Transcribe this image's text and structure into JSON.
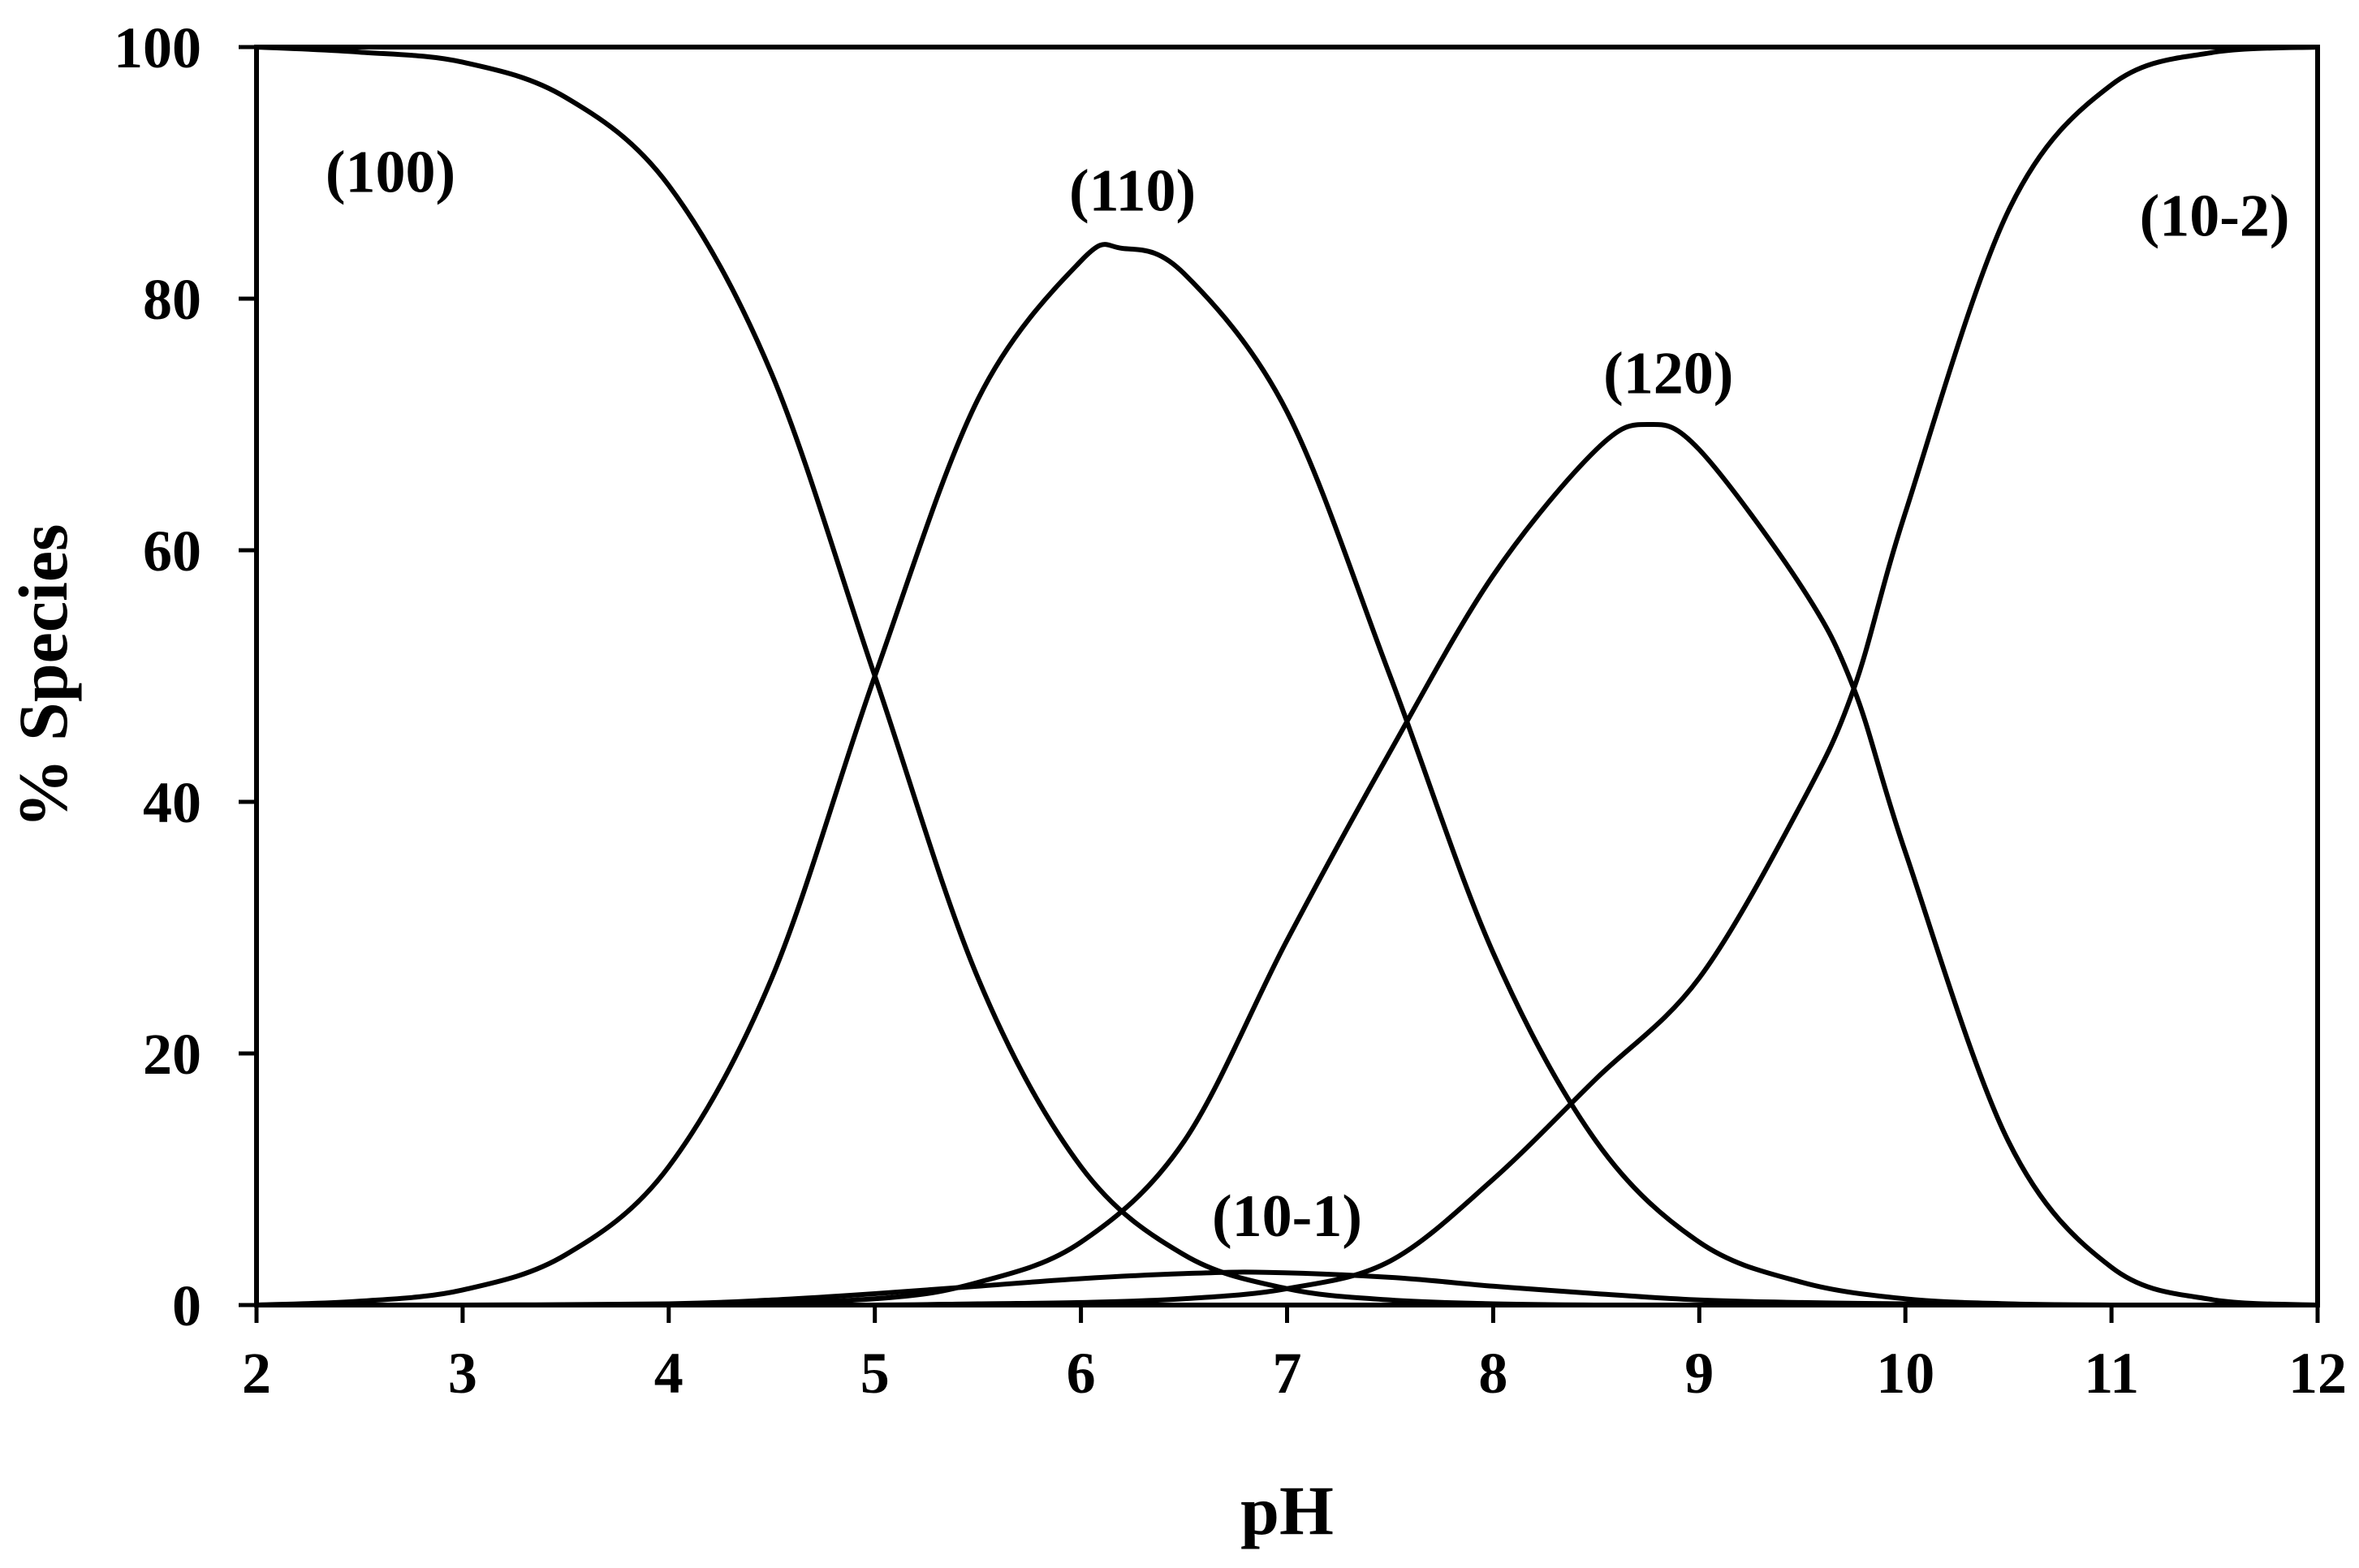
{
  "chart_data": {
    "type": "line",
    "title": "",
    "xlabel": "pH",
    "ylabel": "% Species",
    "xlim": [
      2,
      12
    ],
    "ylim": [
      0,
      100
    ],
    "xticks": [
      "2",
      "3",
      "4",
      "5",
      "6",
      "7",
      "8",
      "9",
      "10",
      "11",
      "12"
    ],
    "yticks": [
      "0",
      "20",
      "40",
      "60",
      "80",
      "100"
    ],
    "grid": false,
    "legend": "none",
    "line_color": "#000000",
    "series": [
      {
        "name": "(100)",
        "x": [
          2,
          2.5,
          3,
          3.5,
          4,
          4.5,
          5,
          5.5,
          6,
          6.5,
          7,
          7.5,
          8,
          8.5,
          9,
          9.5,
          10,
          11,
          12
        ],
        "y": [
          100,
          99.6,
          98.8,
          96,
          89,
          74,
          50,
          26,
          11,
          4,
          1.3,
          0.4,
          0.1,
          0,
          0,
          0,
          0,
          0,
          0
        ]
      },
      {
        "name": "(110)",
        "x": [
          2,
          2.5,
          3,
          3.5,
          4,
          4.5,
          5,
          5.5,
          6,
          6.2,
          6.5,
          7,
          7.5,
          8,
          8.5,
          9,
          9.5,
          10,
          10.5,
          11,
          12
        ],
        "y": [
          0,
          0.3,
          1.2,
          4,
          11,
          26,
          50,
          72,
          83,
          84,
          82,
          71,
          50,
          28,
          13,
          5,
          1.8,
          0.5,
          0.1,
          0,
          0
        ]
      },
      {
        "name": "(10-1)",
        "x": [
          2,
          3,
          4,
          4.5,
          5,
          5.5,
          6,
          6.5,
          6.9,
          7.5,
          8,
          8.5,
          9,
          9.5,
          10,
          11,
          12
        ],
        "y": [
          0,
          0,
          0.1,
          0.4,
          0.9,
          1.5,
          2.1,
          2.5,
          2.6,
          2.2,
          1.5,
          0.9,
          0.4,
          0.2,
          0.1,
          0,
          0
        ]
      },
      {
        "name": "(120)",
        "x": [
          2,
          3,
          4,
          5,
          5.5,
          6,
          6.5,
          7,
          7.5,
          8,
          8.5,
          8.75,
          9,
          9.5,
          9.75,
          10,
          10.5,
          11,
          11.5,
          12
        ],
        "y": [
          0,
          0,
          0,
          0.5,
          1.8,
          5,
          13,
          29,
          44,
          58,
          68,
          70,
          68,
          57,
          49,
          36,
          13,
          3,
          0.4,
          0
        ]
      },
      {
        "name": "(10-2)",
        "x": [
          2,
          4,
          5,
          5.5,
          6,
          6.5,
          7,
          7.5,
          8,
          8.5,
          9,
          9.5,
          9.75,
          10,
          10.5,
          11,
          11.5,
          12
        ],
        "y": [
          0,
          0,
          0,
          0.1,
          0.2,
          0.5,
          1.3,
          3.5,
          10,
          18,
          26,
          40,
          49,
          63,
          87,
          97,
          99.6,
          100
        ]
      }
    ],
    "annotations": [
      {
        "text": "(100)",
        "x": 2.65,
        "y": 88.5
      },
      {
        "text": "(110)",
        "x": 6.25,
        "y": 87
      },
      {
        "text": "(120)",
        "x": 8.85,
        "y": 72.5
      },
      {
        "text": "(10-1)",
        "x": 7.0,
        "y": 5.5
      },
      {
        "text": "(10-2)",
        "x": 11.5,
        "y": 85
      }
    ]
  }
}
